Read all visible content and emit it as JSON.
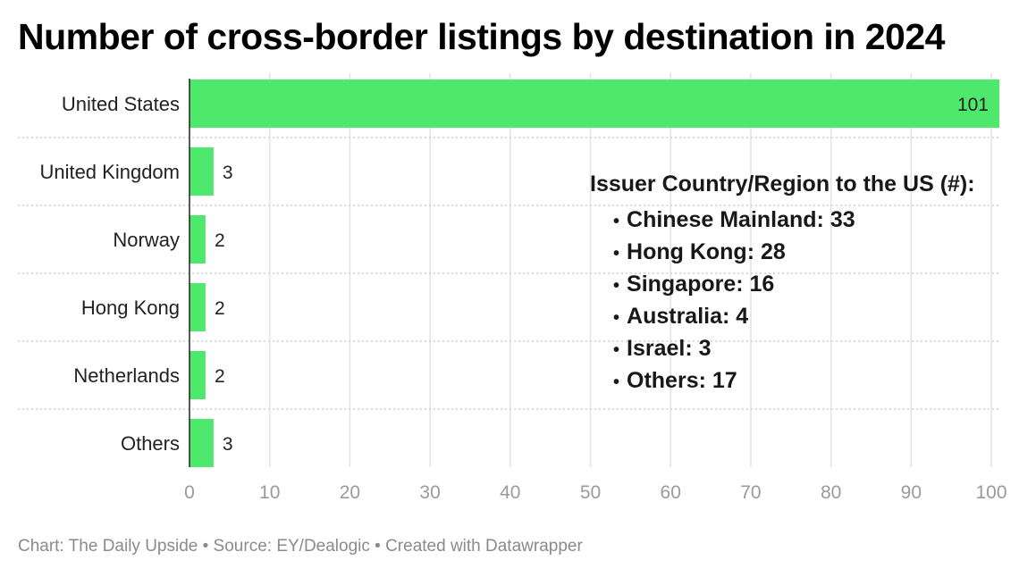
{
  "chart_data": {
    "type": "bar",
    "orientation": "horizontal",
    "title": "Number of cross-border listings by destination in 2024",
    "categories": [
      "United States",
      "United Kingdom",
      "Norway",
      "Hong Kong",
      "Netherlands",
      "Others"
    ],
    "values": [
      101,
      3,
      2,
      2,
      2,
      3
    ],
    "xlim": [
      0,
      101
    ],
    "xticks": [
      0,
      10,
      20,
      30,
      40,
      50,
      60,
      70,
      80,
      90,
      100
    ],
    "grid": true,
    "bar_color": "#4de86c",
    "annotation": {
      "title": "Issuer Country/Region to the US (#):",
      "items": [
        "Chinese Mainland: 33",
        "Hong Kong: 28",
        "Singapore: 16",
        "Australia: 4",
        "Israel: 3",
        "Others: 17"
      ]
    }
  },
  "footer": "Chart: The Daily Upside • Source: EY/Dealogic • Created with Datawrapper"
}
